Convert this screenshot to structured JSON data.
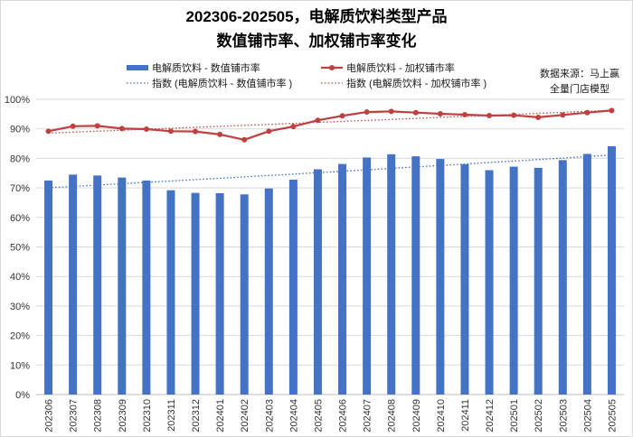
{
  "chart_data": {
    "type": "bar",
    "title_lines": [
      "202306-202505，电解质饮料类型产品",
      "数值铺市率、加权铺市率变化"
    ],
    "categories": [
      "202306",
      "202307",
      "202308",
      "202309",
      "202310",
      "202311",
      "202312",
      "202401",
      "202402",
      "202403",
      "202404",
      "202405",
      "202406",
      "202407",
      "202408",
      "202409",
      "202410",
      "202411",
      "202412",
      "202501",
      "202502",
      "202503",
      "202504",
      "202505"
    ],
    "series": [
      {
        "name": "电解质饮料 - 数值铺市率",
        "type": "bar",
        "color": "#4472C4",
        "values": [
          72.5,
          74.5,
          74.2,
          73.5,
          72.5,
          69.2,
          68.3,
          68.2,
          67.8,
          69.8,
          72.8,
          76.3,
          78.1,
          80.3,
          81.4,
          80.7,
          79.8,
          78.0,
          76.0,
          77.2,
          76.8,
          79.4,
          81.5,
          84.1
        ]
      },
      {
        "name": "电解质饮料 - 加权铺市率",
        "type": "line",
        "color": "#C0403F",
        "values": [
          89.2,
          90.9,
          91.0,
          90.1,
          89.9,
          89.2,
          89.1,
          88.1,
          86.3,
          89.2,
          90.8,
          92.9,
          94.4,
          95.7,
          95.9,
          95.5,
          95.1,
          94.8,
          94.5,
          94.6,
          93.9,
          94.7,
          95.5,
          96.2
        ]
      }
    ],
    "trendlines": [
      {
        "name": "指数 (电解质饮料 - 数值铺市率 )",
        "of_series": 0,
        "style": "dotted",
        "color": "#4472C4"
      },
      {
        "name": "指数 (电解质饮料 - 加权铺市率 )",
        "of_series": 1,
        "style": "dotted",
        "color": "#C0504D"
      }
    ],
    "ylim": [
      0,
      100
    ],
    "y_tick_labels": [
      "0%",
      "10%",
      "20%",
      "30%",
      "40%",
      "50%",
      "60%",
      "70%",
      "80%",
      "90%",
      "100%"
    ],
    "grid": true,
    "legend_position": "top",
    "source_lines": [
      "数据来源：马上赢",
      "全量门店模型"
    ]
  }
}
